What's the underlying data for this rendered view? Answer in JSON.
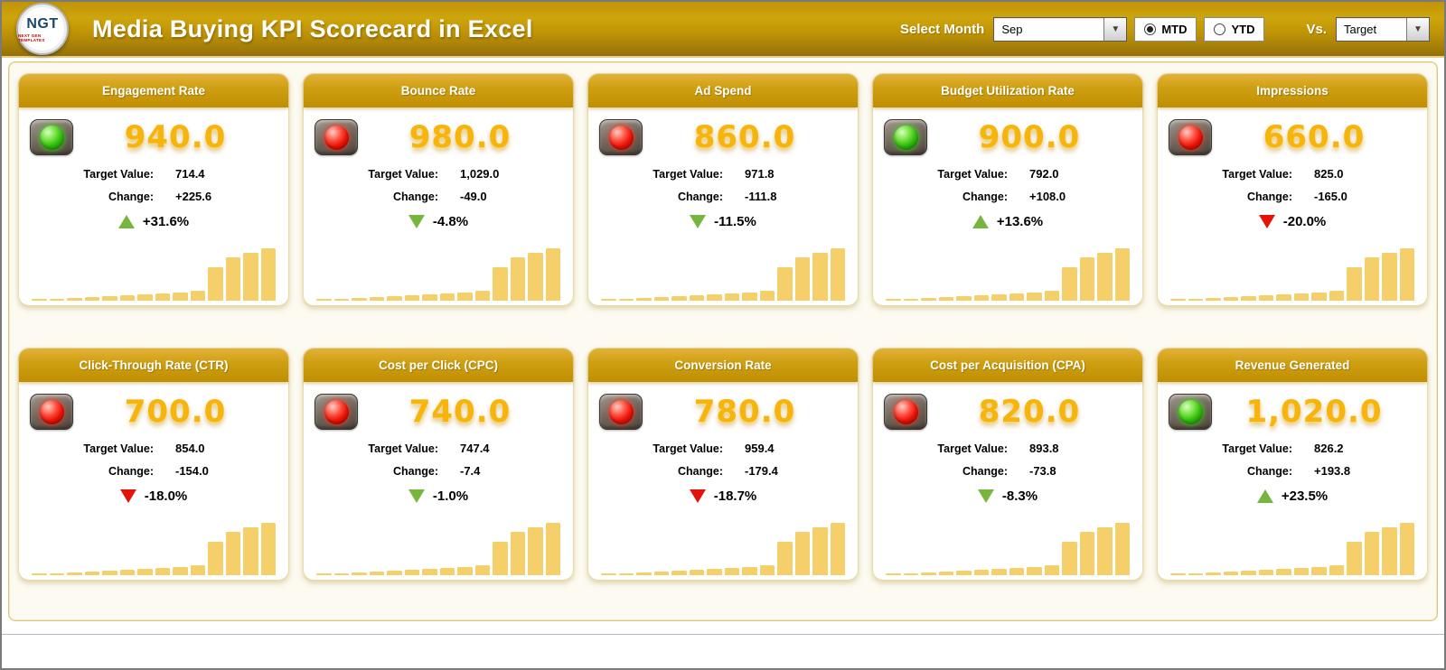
{
  "header": {
    "logo_text": "NGT",
    "logo_subtext": "NEXT GEN TEMPLATES",
    "title": "Media Buying KPI Scorecard in Excel",
    "select_month_label": "Select Month",
    "month_value": "Sep",
    "mtd_label": "MTD",
    "ytd_label": "YTD",
    "mtd_selected": true,
    "vs_label": "Vs.",
    "vs_value": "Target"
  },
  "colors": {
    "gold_accent": "#C79A08",
    "value_gold": "#F6B40C",
    "bar_gold": "#F5CF69",
    "green": "#77B63E",
    "red": "#E41309"
  },
  "sparkline_bars": [
    3,
    4,
    5,
    7,
    8,
    10,
    11,
    13,
    15,
    18,
    60,
    78,
    86,
    94
  ],
  "cards": [
    {
      "title": "Engagement Rate",
      "light": "green",
      "value": "940.0",
      "target_label": "Target Value:",
      "target_value": "714.4",
      "change_label": "Change:",
      "change_value": "+225.6",
      "change_percent": "+31.6%",
      "arrow_direction": "up",
      "arrow_color": "green"
    },
    {
      "title": "Bounce Rate",
      "light": "red",
      "value": "980.0",
      "target_label": "Target Value:",
      "target_value": "1,029.0",
      "change_label": "Change:",
      "change_value": "-49.0",
      "change_percent": "-4.8%",
      "arrow_direction": "down",
      "arrow_color": "green"
    },
    {
      "title": "Ad Spend",
      "light": "red",
      "value": "860.0",
      "target_label": "Target Value:",
      "target_value": "971.8",
      "change_label": "Change:",
      "change_value": "-111.8",
      "change_percent": "-11.5%",
      "arrow_direction": "down",
      "arrow_color": "green"
    },
    {
      "title": "Budget Utilization Rate",
      "light": "green",
      "value": "900.0",
      "target_label": "Target Value:",
      "target_value": "792.0",
      "change_label": "Change:",
      "change_value": "+108.0",
      "change_percent": "+13.6%",
      "arrow_direction": "up",
      "arrow_color": "green"
    },
    {
      "title": "Impressions",
      "light": "red",
      "value": "660.0",
      "target_label": "Target Value:",
      "target_value": "825.0",
      "change_label": "Change:",
      "change_value": "-165.0",
      "change_percent": "-20.0%",
      "arrow_direction": "down",
      "arrow_color": "red"
    },
    {
      "title": "Click-Through Rate (CTR)",
      "light": "red",
      "value": "700.0",
      "target_label": "Target Value:",
      "target_value": "854.0",
      "change_label": "Change:",
      "change_value": "-154.0",
      "change_percent": "-18.0%",
      "arrow_direction": "down",
      "arrow_color": "red"
    },
    {
      "title": "Cost per Click (CPC)",
      "light": "red",
      "value": "740.0",
      "target_label": "Target Value:",
      "target_value": "747.4",
      "change_label": "Change:",
      "change_value": "-7.4",
      "change_percent": "-1.0%",
      "arrow_direction": "down",
      "arrow_color": "green"
    },
    {
      "title": "Conversion Rate",
      "light": "red",
      "value": "780.0",
      "target_label": "Target Value:",
      "target_value": "959.4",
      "change_label": "Change:",
      "change_value": "-179.4",
      "change_percent": "-18.7%",
      "arrow_direction": "down",
      "arrow_color": "red"
    },
    {
      "title": "Cost per Acquisition (CPA)",
      "light": "red",
      "value": "820.0",
      "target_label": "Target Value:",
      "target_value": "893.8",
      "change_label": "Change:",
      "change_value": "-73.8",
      "change_percent": "-8.3%",
      "arrow_direction": "down",
      "arrow_color": "green"
    },
    {
      "title": "Revenue Generated",
      "light": "green",
      "value": "1,020.0",
      "target_label": "Target Value:",
      "target_value": "826.2",
      "change_label": "Change:",
      "change_value": "+193.8",
      "change_percent": "+23.5%",
      "arrow_direction": "up",
      "arrow_color": "green"
    }
  ]
}
